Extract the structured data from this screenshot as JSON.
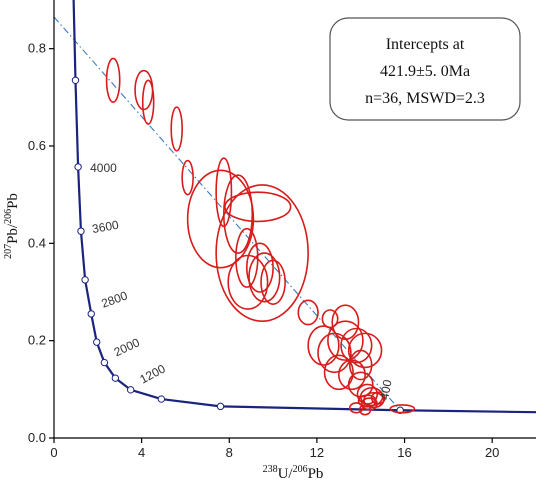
{
  "chart_data": {
    "type": "scatter",
    "subtype": "Tera-Wasserburg concordia diagram",
    "xlabel": {
      "sup": "238",
      "main": "U/",
      "sup2": "206",
      "main2": "Pb"
    },
    "ylabel": {
      "sup": "207",
      "main": "Pb/",
      "sup2": "206",
      "main2": "Pb"
    },
    "xlim": [
      0,
      22
    ],
    "ylim": [
      0,
      0.9
    ],
    "xticks": [
      0,
      4,
      8,
      12,
      16,
      20
    ],
    "yticks": [
      0.0,
      0.2,
      0.4,
      0.6,
      0.8
    ],
    "xtick_labels": [
      "0",
      "4",
      "8",
      "12",
      "16",
      "20"
    ],
    "ytick_labels": [
      "0.0",
      "0.2",
      "0.4",
      "0.6",
      "0.8"
    ],
    "grid": false,
    "colors": {
      "concordia": "#1a237e",
      "ellipses": "#d81b1b",
      "discordia": "#3a7bbf",
      "axis": "#000000"
    },
    "concordia_ages": [
      {
        "label": "",
        "x": 0.98,
        "y": 0.735
      },
      {
        "label": "4000",
        "x": 1.1,
        "y": 0.557
      },
      {
        "label": "3600",
        "x": 1.23,
        "y": 0.425
      },
      {
        "label": "",
        "x": 1.42,
        "y": 0.325
      },
      {
        "label": "2800",
        "x": 1.7,
        "y": 0.255
      },
      {
        "label": "",
        "x": 1.95,
        "y": 0.197
      },
      {
        "label": "2000",
        "x": 2.3,
        "y": 0.155
      },
      {
        "label": "",
        "x": 2.8,
        "y": 0.123
      },
      {
        "label": "1200",
        "x": 3.5,
        "y": 0.099
      },
      {
        "label": "",
        "x": 4.9,
        "y": 0.08
      },
      {
        "label": "",
        "x": 7.6,
        "y": 0.065
      },
      {
        "label": "400",
        "x": 15.8,
        "y": 0.057
      }
    ],
    "discordia": {
      "x_start": 0,
      "y_start": 0.865,
      "x_end": 15.8,
      "y_end": 0.057
    },
    "ellipses": [
      {
        "x": 2.7,
        "y": 0.735,
        "rx": 0.3,
        "ry": 0.045,
        "rot": 0
      },
      {
        "x": 4.1,
        "y": 0.715,
        "rx": 0.4,
        "ry": 0.04,
        "rot": 0
      },
      {
        "x": 4.3,
        "y": 0.69,
        "rx": 0.25,
        "ry": 0.045,
        "rot": 0
      },
      {
        "x": 5.6,
        "y": 0.635,
        "rx": 0.25,
        "ry": 0.045,
        "rot": 0
      },
      {
        "x": 6.1,
        "y": 0.535,
        "rx": 0.25,
        "ry": 0.035,
        "rot": 0
      },
      {
        "x": 7.6,
        "y": 0.45,
        "rx": 1.5,
        "ry": 0.1,
        "rot": 0
      },
      {
        "x": 7.75,
        "y": 0.505,
        "rx": 0.35,
        "ry": 0.07,
        "rot": 0
      },
      {
        "x": 9.5,
        "y": 0.38,
        "rx": 2.1,
        "ry": 0.14,
        "rot": 0
      },
      {
        "x": 9.3,
        "y": 0.475,
        "rx": 1.5,
        "ry": 0.03,
        "rot": 0
      },
      {
        "x": 8.4,
        "y": 0.46,
        "rx": 0.65,
        "ry": 0.08,
        "rot": 0
      },
      {
        "x": 8.8,
        "y": 0.37,
        "rx": 0.5,
        "ry": 0.06,
        "rot": 0
      },
      {
        "x": 8.85,
        "y": 0.32,
        "rx": 0.9,
        "ry": 0.055,
        "rot": 0
      },
      {
        "x": 9.6,
        "y": 0.33,
        "rx": 0.7,
        "ry": 0.05,
        "rot": 0
      },
      {
        "x": 10.0,
        "y": 0.32,
        "rx": 0.55,
        "ry": 0.045,
        "rot": 0
      },
      {
        "x": 9.4,
        "y": 0.35,
        "rx": 0.6,
        "ry": 0.05,
        "rot": 0
      },
      {
        "x": 11.6,
        "y": 0.258,
        "rx": 0.45,
        "ry": 0.025,
        "rot": 0
      },
      {
        "x": 12.6,
        "y": 0.245,
        "rx": 0.35,
        "ry": 0.018,
        "rot": 0
      },
      {
        "x": 13.3,
        "y": 0.238,
        "rx": 0.6,
        "ry": 0.035,
        "rot": 0
      },
      {
        "x": 12.3,
        "y": 0.19,
        "rx": 0.7,
        "ry": 0.04,
        "rot": 0
      },
      {
        "x": 12.8,
        "y": 0.175,
        "rx": 0.75,
        "ry": 0.04,
        "rot": 0
      },
      {
        "x": 13.3,
        "y": 0.2,
        "rx": 0.8,
        "ry": 0.04,
        "rot": 0
      },
      {
        "x": 13.8,
        "y": 0.19,
        "rx": 0.7,
        "ry": 0.035,
        "rot": 0
      },
      {
        "x": 14.2,
        "y": 0.18,
        "rx": 0.75,
        "ry": 0.035,
        "rot": 0
      },
      {
        "x": 13.0,
        "y": 0.135,
        "rx": 0.65,
        "ry": 0.035,
        "rot": 0
      },
      {
        "x": 13.6,
        "y": 0.13,
        "rx": 0.6,
        "ry": 0.03,
        "rot": 0
      },
      {
        "x": 14.0,
        "y": 0.15,
        "rx": 0.5,
        "ry": 0.03,
        "rot": 0
      },
      {
        "x": 14.0,
        "y": 0.11,
        "rx": 0.55,
        "ry": 0.025,
        "rot": 0
      },
      {
        "x": 14.3,
        "y": 0.09,
        "rx": 0.45,
        "ry": 0.02,
        "rot": 0
      },
      {
        "x": 14.5,
        "y": 0.085,
        "rx": 0.5,
        "ry": 0.018,
        "rot": 0
      },
      {
        "x": 14.6,
        "y": 0.078,
        "rx": 0.45,
        "ry": 0.015,
        "rot": 0
      },
      {
        "x": 14.3,
        "y": 0.076,
        "rx": 0.4,
        "ry": 0.012,
        "rot": 0
      },
      {
        "x": 14.8,
        "y": 0.082,
        "rx": 0.3,
        "ry": 0.012,
        "rot": 0
      },
      {
        "x": 13.8,
        "y": 0.062,
        "rx": 0.3,
        "ry": 0.01,
        "rot": 0
      },
      {
        "x": 14.4,
        "y": 0.07,
        "rx": 0.35,
        "ry": 0.012,
        "rot": 0
      },
      {
        "x": 14.2,
        "y": 0.058,
        "rx": 0.25,
        "ry": 0.01,
        "rot": 0
      },
      {
        "x": 15.9,
        "y": 0.06,
        "rx": 0.55,
        "ry": 0.008,
        "rot": 0
      }
    ],
    "annotation": {
      "line1": "Intercepts at",
      "line2": "421.9±5. 0Ma",
      "line3": "n=36, MSWD=2.3",
      "position": "top-right"
    }
  }
}
